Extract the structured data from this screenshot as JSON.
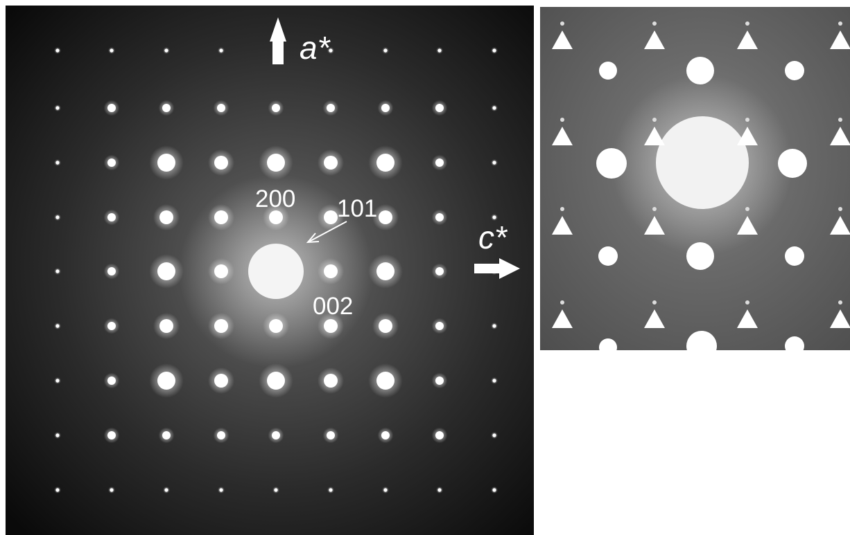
{
  "figure": {
    "left_pattern": {
      "index_labels": {
        "h200": "200",
        "h101": "101",
        "h002": "002"
      },
      "axis_label": "a*"
    },
    "side_axis_label": "c*",
    "right_pattern": {
      "marker": "white triangles"
    },
    "colors": {
      "background": "#000000",
      "spot": "#ffffff",
      "inset_background": "#5a5a5a"
    }
  }
}
